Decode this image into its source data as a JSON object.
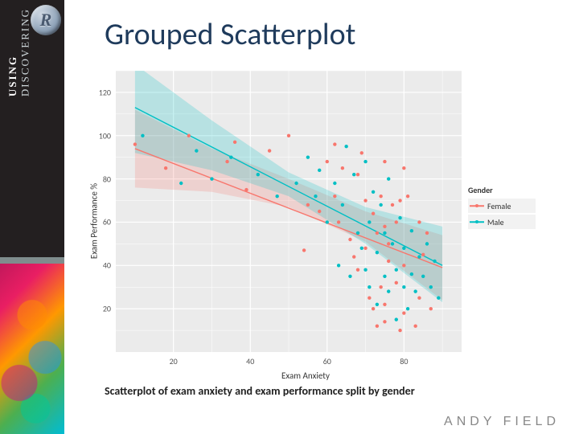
{
  "sidebar": {
    "line1": "DISCOVERING",
    "line2": "USING",
    "r_glyph": "R"
  },
  "title": "Grouped Scatterplot",
  "caption": "Scatterplot of exam anxiety and exam performance split by gender",
  "author": "ANDY FIELD",
  "chart": {
    "type": "scatter",
    "background_color": "#ebebeb",
    "grid_color": "#ffffff",
    "panel_border": "#ebebeb",
    "xlabel": "Exam Anxiety",
    "ylabel": "Exam Performance %",
    "label_fontsize": 11,
    "tick_fontsize": 10,
    "xlim": [
      5,
      95
    ],
    "ylim": [
      0,
      130
    ],
    "xticks": [
      20,
      40,
      60,
      80
    ],
    "yticks": [
      20,
      40,
      60,
      80,
      100,
      120
    ],
    "xminor": [
      30,
      50,
      70,
      90
    ],
    "yminor": [
      10,
      30,
      50,
      70,
      90,
      110,
      130
    ],
    "groups": {
      "Female": {
        "color": "#f8766d",
        "ribbon_color": "#f8766d",
        "ribbon_opacity": 0.22,
        "line_width": 1.4,
        "marker_size": 2.2,
        "line": {
          "x1": 10,
          "y1": 94,
          "x2": 90,
          "y2": 39
        },
        "ribbon": [
          [
            10,
            76,
            112
          ],
          [
            30,
            74,
            94
          ],
          [
            50,
            67,
            80
          ],
          [
            70,
            51,
            65
          ],
          [
            90,
            24,
            54
          ]
        ],
        "points": [
          [
            10,
            96
          ],
          [
            18,
            85
          ],
          [
            24,
            100
          ],
          [
            34,
            88
          ],
          [
            36,
            97
          ],
          [
            39,
            75
          ],
          [
            45,
            93
          ],
          [
            50,
            100
          ],
          [
            54,
            47
          ],
          [
            55,
            68
          ],
          [
            58,
            65
          ],
          [
            60,
            88
          ],
          [
            62,
            72
          ],
          [
            62,
            96
          ],
          [
            63,
            60
          ],
          [
            64,
            85
          ],
          [
            66,
            52
          ],
          [
            67,
            44
          ],
          [
            68,
            82
          ],
          [
            68,
            38
          ],
          [
            69,
            92
          ],
          [
            70,
            70
          ],
          [
            70,
            48
          ],
          [
            71,
            25
          ],
          [
            72,
            64
          ],
          [
            72,
            20
          ],
          [
            73,
            55
          ],
          [
            73,
            12
          ],
          [
            74,
            72
          ],
          [
            74,
            30
          ],
          [
            75,
            88
          ],
          [
            75,
            58
          ],
          [
            75,
            22
          ],
          [
            75,
            14
          ],
          [
            76,
            50
          ],
          [
            76,
            42
          ],
          [
            77,
            68
          ],
          [
            78,
            60
          ],
          [
            78,
            32
          ],
          [
            79,
            10
          ],
          [
            79,
            70
          ],
          [
            80,
            85
          ],
          [
            80,
            40
          ],
          [
            80,
            18
          ],
          [
            81,
            72
          ],
          [
            83,
            12
          ],
          [
            84,
            60
          ],
          [
            84,
            25
          ],
          [
            85,
            45
          ],
          [
            86,
            55
          ],
          [
            87,
            20
          ]
        ]
      },
      "Male": {
        "color": "#00bfc4",
        "ribbon_color": "#00bfc4",
        "ribbon_opacity": 0.22,
        "line_width": 1.4,
        "marker_size": 2.2,
        "line": {
          "x1": 10,
          "y1": 113,
          "x2": 90,
          "y2": 40
        },
        "ribbon": [
          [
            10,
            92,
            133
          ],
          [
            30,
            84,
            107
          ],
          [
            50,
            72,
            83
          ],
          [
            70,
            50,
            67
          ],
          [
            90,
            23,
            58
          ]
        ],
        "points": [
          [
            12,
            100
          ],
          [
            22,
            78
          ],
          [
            26,
            93
          ],
          [
            30,
            80
          ],
          [
            35,
            90
          ],
          [
            42,
            82
          ],
          [
            47,
            72
          ],
          [
            52,
            78
          ],
          [
            55,
            90
          ],
          [
            57,
            72
          ],
          [
            58,
            84
          ],
          [
            60,
            60
          ],
          [
            62,
            78
          ],
          [
            63,
            40
          ],
          [
            64,
            68
          ],
          [
            65,
            95
          ],
          [
            66,
            35
          ],
          [
            67,
            82
          ],
          [
            68,
            55
          ],
          [
            69,
            48
          ],
          [
            70,
            88
          ],
          [
            70,
            38
          ],
          [
            71,
            60
          ],
          [
            71,
            30
          ],
          [
            72,
            74
          ],
          [
            73,
            46
          ],
          [
            73,
            22
          ],
          [
            74,
            68
          ],
          [
            75,
            55
          ],
          [
            75,
            35
          ],
          [
            76,
            80
          ],
          [
            76,
            28
          ],
          [
            77,
            50
          ],
          [
            78,
            38
          ],
          [
            78,
            15
          ],
          [
            79,
            62
          ],
          [
            80,
            48
          ],
          [
            80,
            30
          ],
          [
            81,
            20
          ],
          [
            82,
            56
          ],
          [
            82,
            36
          ],
          [
            83,
            28
          ],
          [
            84,
            44
          ],
          [
            85,
            35
          ],
          [
            86,
            50
          ],
          [
            87,
            30
          ],
          [
            88,
            42
          ],
          [
            89,
            25
          ]
        ]
      }
    },
    "legend": {
      "title": "Gender",
      "items": [
        {
          "label": "Female",
          "color": "#f8766d"
        },
        {
          "label": "Male",
          "color": "#00bfc4"
        }
      ],
      "title_fontsize": 10,
      "item_fontsize": 10,
      "item_bg": "#f2f2f2"
    }
  }
}
